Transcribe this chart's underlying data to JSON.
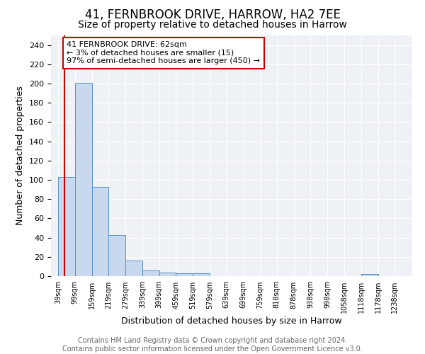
{
  "title": "41, FERNBROOK DRIVE, HARROW, HA2 7EE",
  "subtitle": "Size of property relative to detached houses in Harrow",
  "xlabel": "Distribution of detached houses by size in Harrow",
  "ylabel": "Number of detached properties",
  "bin_edges": [
    39,
    99,
    159,
    219,
    279,
    339,
    399,
    459,
    519,
    579,
    639,
    699,
    759,
    818,
    878,
    938,
    998,
    1058,
    1118,
    1178,
    1238
  ],
  "bar_heights": [
    103,
    201,
    93,
    43,
    16,
    6,
    4,
    3,
    3,
    0,
    0,
    0,
    0,
    0,
    0,
    0,
    0,
    0,
    2,
    0,
    0
  ],
  "bar_color": "#c8d9ed",
  "bar_edge_color": "#5b8fc9",
  "ylim": [
    0,
    250
  ],
  "yticks": [
    0,
    20,
    40,
    60,
    80,
    100,
    120,
    140,
    160,
    180,
    200,
    220,
    240
  ],
  "xlim_left": 14,
  "xlim_right": 1300,
  "property_size": 62,
  "property_line_color": "#cc0000",
  "annotation_text_line1": "41 FERNBROOK DRIVE: 62sqm",
  "annotation_text_line2": "← 3% of detached houses are smaller (15)",
  "annotation_text_line3": "97% of semi-detached houses are larger (450) →",
  "annotation_box_color": "#cc0000",
  "background_color": "#eef2f7",
  "footer_text": "Contains HM Land Registry data © Crown copyright and database right 2024.\nContains public sector information licensed under the Open Government Licence v3.0.",
  "title_fontsize": 12,
  "subtitle_fontsize": 10,
  "annotation_fontsize": 8,
  "footer_fontsize": 7,
  "ylabel_fontsize": 9,
  "xlabel_fontsize": 9,
  "tick_label_fontsize": 7
}
